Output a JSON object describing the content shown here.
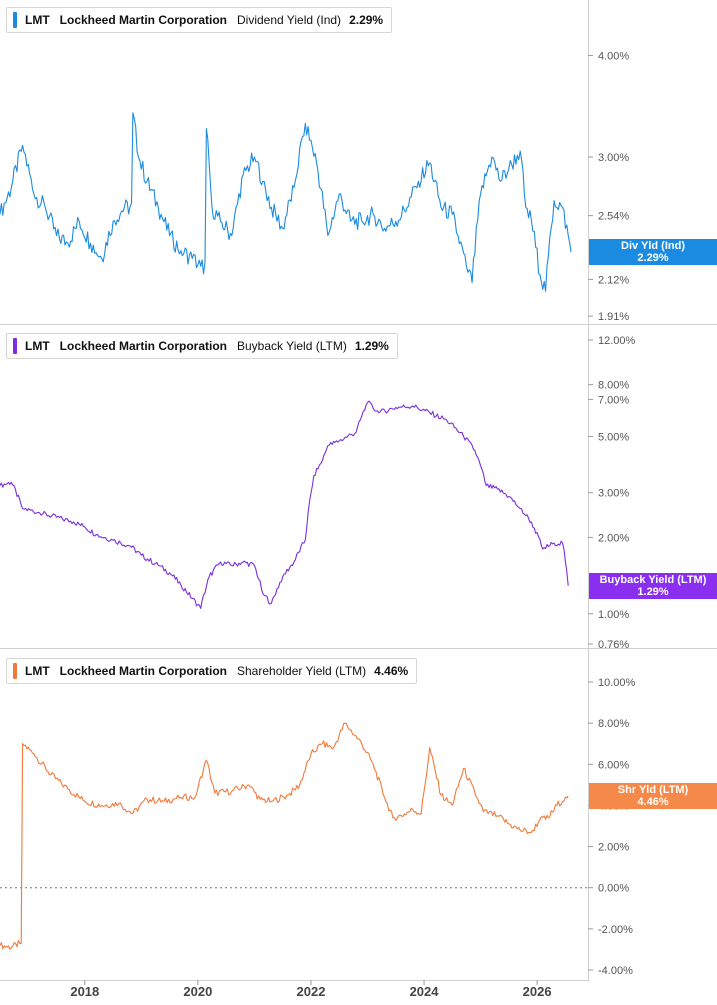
{
  "panels": [
    {
      "ticker": "LMT",
      "company": "Lockheed Martin Corporation",
      "metric": "Dividend Yield (Ind)",
      "legend_value": "2.29%",
      "tag_label": "Div Yld (Ind)",
      "tag_value": "2.29%",
      "color": "#1a8be0",
      "tag_color": "#1a8be0"
    },
    {
      "ticker": "LMT",
      "company": "Lockheed Martin Corporation",
      "metric": "Buyback Yield (LTM)",
      "legend_value": "1.29%",
      "tag_label": "Buyback Yield (LTM)",
      "tag_value": "1.29%",
      "color": "#7b2ee0",
      "tag_color": "#8a2ef0"
    },
    {
      "ticker": "LMT",
      "company": "Lockheed Martin Corporation",
      "metric": "Shareholder Yield (LTM)",
      "legend_value": "4.46%",
      "tag_label": "Shr Yld (LTM)",
      "tag_value": "4.46%",
      "color": "#f07a3a",
      "tag_color": "#f5894a"
    }
  ],
  "chart_data": [
    {
      "type": "line",
      "title": "",
      "series": [
        {
          "name": "Dividend Yield (Ind)",
          "x": [
            2016.5,
            2016.7,
            2016.9,
            2017.1,
            2017.3,
            2017.5,
            2017.7,
            2017.9,
            2018.1,
            2018.3,
            2018.5,
            2018.7,
            2018.85,
            2018.95,
            2019.1,
            2019.3,
            2019.5,
            2019.7,
            2019.9,
            2020.05,
            2020.15,
            2020.25,
            2020.4,
            2020.6,
            2020.8,
            2021.0,
            2021.15,
            2021.3,
            2021.5,
            2021.7,
            2021.9,
            2022.1,
            2022.3,
            2022.5,
            2022.7,
            2022.9,
            2023.1,
            2023.3,
            2023.5,
            2023.7,
            2023.9,
            2024.1,
            2024.3,
            2024.5,
            2024.6,
            2024.75,
            2024.85,
            2025.0,
            2025.2,
            2025.35,
            2025.5,
            2025.7,
            2025.8,
            2025.9,
            2026.05,
            2026.15,
            2026.3,
            2026.45,
            2026.6
          ],
          "y": [
            2.55,
            2.75,
            3.1,
            2.7,
            2.6,
            2.4,
            2.35,
            2.5,
            2.35,
            2.25,
            2.5,
            2.6,
            3.4,
            3.0,
            2.8,
            2.6,
            2.4,
            2.3,
            2.25,
            2.2,
            3.25,
            2.6,
            2.5,
            2.4,
            2.85,
            3.0,
            2.8,
            2.6,
            2.45,
            2.75,
            3.3,
            2.95,
            2.4,
            2.7,
            2.5,
            2.5,
            2.55,
            2.45,
            2.5,
            2.6,
            2.8,
            2.95,
            2.6,
            2.55,
            2.4,
            2.2,
            2.1,
            2.7,
            3.0,
            2.8,
            2.9,
            3.05,
            2.6,
            2.5,
            2.15,
            2.05,
            2.65,
            2.6,
            2.29
          ]
        }
      ],
      "y_ticks": [
        "4.00%",
        "3.00%",
        "2.54%",
        "2.12%",
        "1.91%"
      ],
      "ylim": [
        1.9,
        4.5
      ],
      "y_scale": "log",
      "grid": false
    },
    {
      "type": "line",
      "title": "",
      "series": [
        {
          "name": "Buyback Yield (LTM)",
          "x": [
            2016.5,
            2016.7,
            2016.9,
            2017.2,
            2017.5,
            2017.8,
            2018.0,
            2018.2,
            2018.5,
            2018.8,
            2019.0,
            2019.3,
            2019.5,
            2019.7,
            2019.9,
            2020.05,
            2020.2,
            2020.4,
            2020.6,
            2020.8,
            2021.0,
            2021.15,
            2021.3,
            2021.5,
            2021.7,
            2021.9,
            2022.05,
            2022.2,
            2022.3,
            2022.5,
            2022.8,
            2023.0,
            2023.2,
            2023.5,
            2023.8,
            2024.1,
            2024.4,
            2024.7,
            2024.9,
            2025.1,
            2025.3,
            2025.5,
            2025.7,
            2025.9,
            2026.1,
            2026.3,
            2026.45,
            2026.55
          ],
          "y": [
            3.2,
            3.3,
            2.6,
            2.5,
            2.4,
            2.3,
            2.2,
            2.05,
            1.95,
            1.85,
            1.7,
            1.55,
            1.45,
            1.3,
            1.15,
            1.05,
            1.4,
            1.6,
            1.55,
            1.6,
            1.55,
            1.2,
            1.1,
            1.4,
            1.6,
            1.95,
            3.5,
            4.0,
            4.6,
            4.8,
            5.2,
            6.8,
            6.2,
            6.5,
            6.6,
            6.2,
            5.8,
            5.0,
            4.4,
            3.2,
            3.1,
            2.9,
            2.6,
            2.3,
            1.8,
            1.9,
            1.9,
            1.29
          ]
        }
      ],
      "y_ticks": [
        "12.00%",
        "8.00%",
        "7.00%",
        "5.00%",
        "3.00%",
        "2.00%",
        "1.00%",
        "0.76%"
      ],
      "ylim": [
        0.76,
        12.0
      ],
      "y_scale": "log",
      "grid": false
    },
    {
      "type": "line",
      "title": "",
      "series": [
        {
          "name": "Shareholder Yield (LTM)",
          "x": [
            2016.5,
            2016.7,
            2016.85,
            2016.9,
            2017.1,
            2017.4,
            2017.7,
            2018.0,
            2018.3,
            2018.6,
            2018.85,
            2019.1,
            2019.4,
            2019.7,
            2019.95,
            2020.15,
            2020.3,
            2020.6,
            2020.9,
            2021.1,
            2021.3,
            2021.6,
            2021.8,
            2022.0,
            2022.2,
            2022.4,
            2022.6,
            2022.9,
            2023.1,
            2023.3,
            2023.45,
            2023.6,
            2023.8,
            2023.95,
            2024.1,
            2024.3,
            2024.5,
            2024.7,
            2024.9,
            2025.05,
            2025.3,
            2025.5,
            2025.7,
            2025.9,
            2026.05,
            2026.2,
            2026.35,
            2026.5,
            2026.55
          ],
          "y": [
            -2.8,
            -2.9,
            -2.7,
            7.0,
            6.5,
            5.5,
            4.8,
            4.2,
            4.0,
            4.1,
            3.6,
            4.3,
            4.2,
            4.4,
            4.4,
            6.2,
            4.6,
            4.7,
            5.0,
            4.3,
            4.2,
            4.5,
            5.0,
            6.5,
            7.0,
            6.8,
            8.0,
            7.0,
            6.0,
            4.4,
            3.4,
            3.5,
            3.8,
            3.6,
            6.8,
            4.5,
            4.0,
            5.8,
            4.6,
            3.7,
            3.5,
            3.1,
            2.8,
            2.7,
            3.3,
            3.4,
            4.0,
            4.4,
            4.46
          ]
        }
      ],
      "y_ticks": [
        "10.00%",
        "8.00%",
        "6.00%",
        "4.00%",
        "2.00%",
        "0.00%",
        "-2.00%",
        "-4.00%"
      ],
      "ylim": [
        -4.0,
        10.0
      ],
      "y_scale": "linear",
      "zero_line": true,
      "grid": false
    }
  ],
  "x_axis": {
    "ticks": [
      "2018",
      "2020",
      "2022",
      "2024",
      "2026"
    ],
    "tick_years": [
      2018,
      2020,
      2022,
      2024,
      2026
    ],
    "xlim": [
      2016.5,
      2026.9
    ]
  }
}
